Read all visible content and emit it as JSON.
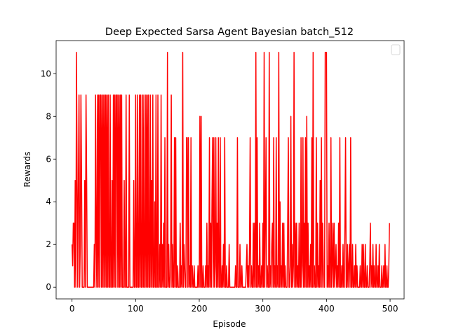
{
  "chart_data": {
    "type": "line",
    "title": "Deep Expected Sarsa Agent Bayesian batch_512",
    "xlabel": "Episode",
    "ylabel": "Rewards",
    "xlim": [
      -25,
      522
    ],
    "ylim": [
      -0.55,
      11.55
    ],
    "xticks": [
      0,
      100,
      200,
      300,
      400,
      500
    ],
    "yticks": [
      0,
      2,
      4,
      6,
      8,
      10
    ],
    "legend": "upper right",
    "grid": false,
    "x": [
      0,
      1,
      2,
      3,
      4,
      5,
      6,
      7,
      8,
      9,
      10,
      11,
      12,
      13,
      14,
      15,
      16,
      17,
      18,
      19,
      20,
      21,
      22,
      23,
      24,
      25,
      26,
      27,
      28,
      29,
      30,
      31,
      32,
      33,
      34,
      35,
      36,
      37,
      38,
      39,
      40,
      41,
      42,
      43,
      44,
      45,
      46,
      47,
      48,
      49,
      50,
      51,
      52,
      53,
      54,
      55,
      56,
      57,
      58,
      59,
      60,
      61,
      62,
      63,
      64,
      65,
      66,
      67,
      68,
      69,
      70,
      71,
      72,
      73,
      74,
      75,
      76,
      77,
      78,
      79,
      80,
      81,
      82,
      83,
      84,
      85,
      86,
      87,
      88,
      89,
      90,
      91,
      92,
      93,
      94,
      95,
      96,
      97,
      98,
      99,
      100,
      101,
      102,
      103,
      104,
      105,
      106,
      107,
      108,
      109,
      110,
      111,
      112,
      113,
      114,
      115,
      116,
      117,
      118,
      119,
      120,
      121,
      122,
      123,
      124,
      125,
      126,
      127,
      128,
      129,
      130,
      131,
      132,
      133,
      134,
      135,
      136,
      137,
      138,
      139,
      140,
      141,
      142,
      143,
      144,
      145,
      146,
      147,
      148,
      149,
      150,
      151,
      152,
      153,
      154,
      155,
      156,
      157,
      158,
      159,
      160,
      161,
      162,
      163,
      164,
      165,
      166,
      167,
      168,
      169,
      170,
      171,
      172,
      173,
      174,
      175,
      176,
      177,
      178,
      179,
      180,
      181,
      182,
      183,
      184,
      185,
      186,
      187,
      188,
      189,
      190,
      191,
      192,
      193,
      194,
      195,
      196,
      197,
      198,
      199,
      200,
      201,
      202,
      203,
      204,
      205,
      206,
      207,
      208,
      209,
      210,
      211,
      212,
      213,
      214,
      215,
      216,
      217,
      218,
      219,
      220,
      221,
      222,
      223,
      224,
      225,
      226,
      227,
      228,
      229,
      230,
      231,
      232,
      233,
      234,
      235,
      236,
      237,
      238,
      239,
      240,
      241,
      242,
      243,
      244,
      245,
      246,
      247,
      248,
      249,
      250,
      251,
      252,
      253,
      254,
      255,
      256,
      257,
      258,
      259,
      260,
      261,
      262,
      263,
      264,
      265,
      266,
      267,
      268,
      269,
      270,
      271,
      272,
      273,
      274,
      275,
      276,
      277,
      278,
      279,
      280,
      281,
      282,
      283,
      284,
      285,
      286,
      287,
      288,
      289,
      290,
      291,
      292,
      293,
      294,
      295,
      296,
      297,
      298,
      299,
      300,
      301,
      302,
      303,
      304,
      305,
      306,
      307,
      308,
      309,
      310,
      311,
      312,
      313,
      314,
      315,
      316,
      317,
      318,
      319,
      320,
      321,
      322,
      323,
      324,
      325,
      326,
      327,
      328,
      329,
      330,
      331,
      332,
      333,
      334,
      335,
      336,
      337,
      338,
      339,
      340,
      341,
      342,
      343,
      344,
      345,
      346,
      347,
      348,
      349,
      350,
      351,
      352,
      353,
      354,
      355,
      356,
      357,
      358,
      359,
      360,
      361,
      362,
      363,
      364,
      365,
      366,
      367,
      368,
      369,
      370,
      371,
      372,
      373,
      374,
      375,
      376,
      377,
      378,
      379,
      380,
      381,
      382,
      383,
      384,
      385,
      386,
      387,
      388,
      389,
      390,
      391,
      392,
      393,
      394,
      395,
      396,
      397,
      398,
      399,
      400,
      401,
      402,
      403,
      404,
      405,
      406,
      407,
      408,
      409,
      410,
      411,
      412,
      413,
      414,
      415,
      416,
      417,
      418,
      419,
      420,
      421,
      422,
      423,
      424,
      425,
      426,
      427,
      428,
      429,
      430,
      431,
      432,
      433,
      434,
      435,
      436,
      437,
      438,
      439,
      440,
      441,
      442,
      443,
      444,
      445,
      446,
      447,
      448,
      449,
      450,
      451,
      452,
      453,
      454,
      455,
      456,
      457,
      458,
      459,
      460,
      461,
      462,
      463,
      464,
      465,
      466,
      467,
      468,
      469,
      470,
      471,
      472,
      473,
      474,
      475,
      476,
      477,
      478,
      479,
      480,
      481,
      482,
      483,
      484,
      485,
      486,
      487,
      488,
      489,
      490,
      491,
      492,
      493,
      494,
      495,
      496,
      497,
      498,
      499
    ],
    "series": [
      {
        "color": "#ff0000",
        "values": [
          2,
          1,
          3,
          3,
          0,
          5,
          0,
          11,
          5,
          0,
          5,
          9,
          0,
          2,
          9,
          5,
          0,
          0,
          0,
          0,
          5,
          0,
          9,
          5,
          0,
          0,
          0,
          0,
          0,
          0,
          0,
          0,
          0,
          0,
          0,
          2,
          0,
          9,
          2,
          0,
          9,
          0,
          9,
          0,
          9,
          9,
          0,
          9,
          0,
          9,
          0,
          9,
          0,
          9,
          0,
          9,
          0,
          9,
          0,
          0,
          9,
          0,
          0,
          5,
          0,
          9,
          0,
          9,
          0,
          9,
          9,
          0,
          9,
          0,
          9,
          0,
          9,
          0,
          9,
          0,
          0,
          0,
          5,
          0,
          0,
          9,
          0,
          0,
          0,
          0,
          9,
          0,
          0,
          0,
          0,
          0,
          0,
          5,
          0,
          0,
          9,
          0,
          0,
          9,
          0,
          0,
          9,
          0,
          9,
          0,
          0,
          9,
          0,
          9,
          0,
          0,
          9,
          0,
          9,
          0,
          9,
          0,
          0,
          9,
          0,
          5,
          0,
          9,
          0,
          0,
          4,
          0,
          9,
          0,
          0,
          9,
          0,
          0,
          2,
          0,
          9,
          0,
          2,
          0,
          3,
          0,
          7,
          0,
          0,
          0,
          11,
          0,
          2,
          0,
          0,
          1,
          9,
          0,
          2,
          0,
          0,
          7,
          0,
          7,
          0,
          0,
          1,
          0,
          0,
          0,
          3,
          0,
          1,
          0,
          11,
          0,
          2,
          1,
          0,
          0,
          7,
          7,
          0,
          7,
          0,
          1,
          0,
          7,
          0,
          1,
          0,
          0,
          1,
          0,
          0,
          0,
          0,
          0,
          1,
          0,
          0,
          8,
          0,
          8,
          0,
          0,
          1,
          0,
          0,
          0,
          1,
          0,
          3,
          0,
          1,
          0,
          7,
          0,
          3,
          0,
          4,
          7,
          0,
          7,
          0,
          1,
          7,
          0,
          3,
          0,
          7,
          0,
          0,
          7,
          0,
          0,
          1,
          0,
          2,
          0,
          7,
          0,
          0,
          1,
          0,
          0,
          0,
          2,
          0,
          0,
          0,
          0,
          0,
          0,
          0,
          0,
          0,
          1,
          0,
          0,
          7,
          0,
          0,
          0,
          2,
          0,
          0,
          1,
          0,
          0,
          0,
          0,
          0,
          0,
          1,
          2,
          0,
          1,
          0,
          2,
          7,
          0,
          1,
          0,
          0,
          3,
          0,
          3,
          0,
          11,
          0,
          7,
          0,
          1,
          0,
          3,
          0,
          0,
          1,
          0,
          3,
          0,
          11,
          0,
          3,
          7,
          0,
          1,
          0,
          0,
          11,
          0,
          1,
          0,
          2,
          3,
          0,
          7,
          0,
          1,
          0,
          7,
          0,
          1,
          0,
          11,
          0,
          4,
          0,
          1,
          0,
          3,
          0,
          3,
          0,
          1,
          0,
          0,
          0,
          3,
          7,
          0,
          0,
          1,
          8,
          0,
          2,
          0,
          1,
          11,
          0,
          3,
          0,
          3,
          0,
          1,
          0,
          3,
          0,
          0,
          7,
          0,
          1,
          7,
          0,
          3,
          0,
          7,
          0,
          8,
          0,
          3,
          0,
          1,
          0,
          2,
          0,
          7,
          0,
          11,
          0,
          1,
          0,
          0,
          7,
          0,
          3,
          0,
          1,
          0,
          5,
          0,
          7,
          0,
          3,
          1,
          0,
          0,
          11,
          11,
          11,
          0,
          1,
          0,
          3,
          0,
          0,
          7,
          0,
          1,
          3,
          0,
          3,
          0,
          1,
          2,
          0,
          1,
          0,
          3,
          0,
          7,
          0,
          0,
          1,
          0,
          2,
          0,
          0,
          3,
          7,
          0,
          0,
          2,
          0,
          1,
          2,
          0,
          7,
          0,
          0,
          2,
          0,
          0,
          1,
          0,
          2,
          0,
          1,
          0,
          0,
          0,
          0,
          1,
          0,
          0,
          2,
          0,
          2,
          0,
          0,
          2,
          0,
          0,
          1,
          0,
          0,
          0,
          1,
          3,
          0,
          1,
          0,
          2,
          0,
          1,
          0,
          0,
          2,
          0,
          0,
          1,
          0,
          2,
          0,
          0,
          0,
          1,
          0,
          0,
          1,
          0,
          2,
          0,
          0,
          1,
          0,
          0,
          1,
          3
        ]
      }
    ]
  }
}
